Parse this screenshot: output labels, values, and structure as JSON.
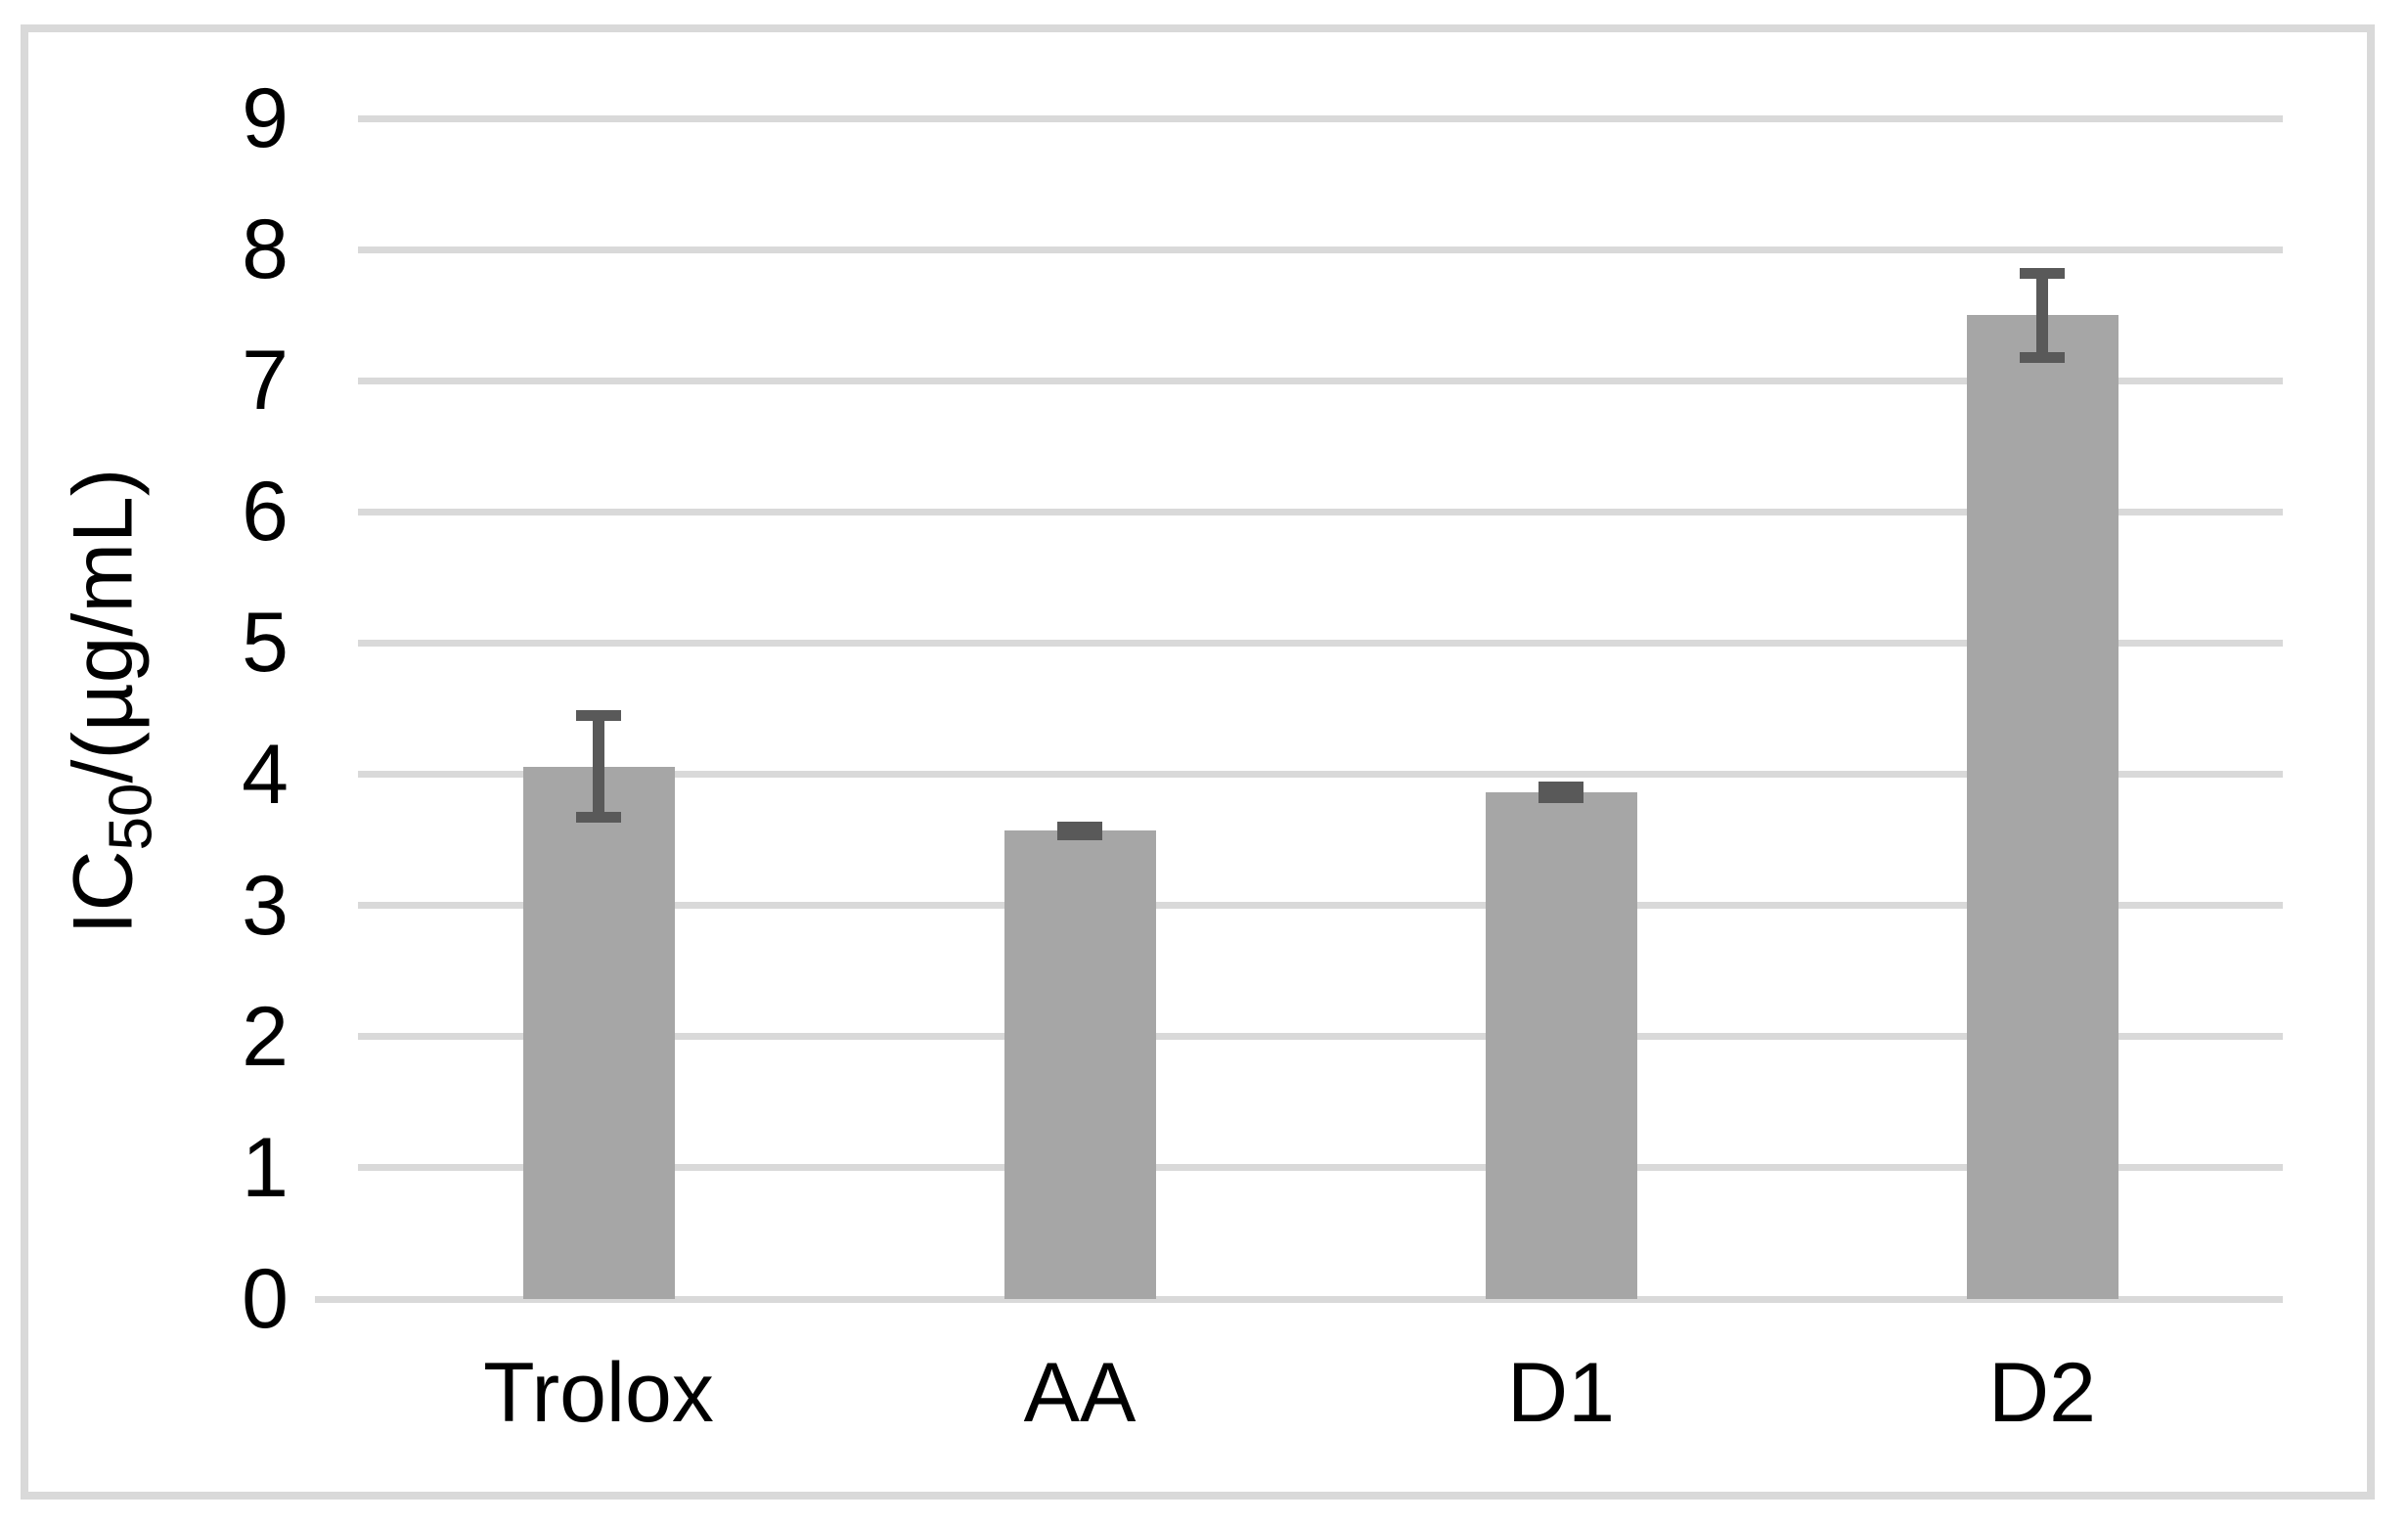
{
  "chart_data": {
    "type": "bar",
    "categories": [
      "Trolox",
      "AA",
      "D1",
      "D2"
    ],
    "values": [
      4.06,
      3.57,
      3.86,
      7.5
    ],
    "error_bars": [
      0.39,
      0.03,
      0.04,
      0.32
    ],
    "ylabel_parts": {
      "prefix": "IC",
      "subscript": "50",
      "suffix": "/(µg/mL)"
    },
    "ylabel_text": "IC50/(µg/mL)",
    "xlabel": "",
    "title": "",
    "ylim": [
      0,
      9
    ],
    "yticks": [
      0,
      1,
      2,
      3,
      4,
      5,
      6,
      7,
      8,
      9
    ],
    "grid": true,
    "legend": "none",
    "colors": {
      "bar_fill": "#a6a6a6",
      "error_bar": "#595959",
      "gridline": "#d9d9d9",
      "frame_border": "#d9d9d9",
      "background": "#ffffff",
      "text": "#000000"
    }
  }
}
